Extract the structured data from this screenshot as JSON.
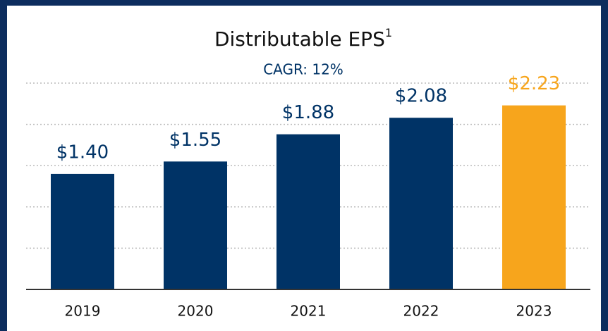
{
  "chart_data": {
    "type": "bar",
    "title": "Distributable EPS",
    "title_footnote": "1",
    "subtitle": "CAGR: 12%",
    "categories": [
      "2019",
      "2020",
      "2021",
      "2022",
      "2023"
    ],
    "values": [
      1.4,
      1.55,
      1.88,
      2.08,
      2.23
    ],
    "value_labels": [
      "$1.40",
      "$1.55",
      "$1.88",
      "$2.08",
      "$2.23"
    ],
    "colors": [
      "#003366",
      "#003366",
      "#003366",
      "#003366",
      "#f7a51c"
    ],
    "ylim": [
      0,
      2.5
    ],
    "yticks": [
      0,
      0.5,
      1,
      1.5,
      2,
      2.5
    ],
    "grid": true
  }
}
